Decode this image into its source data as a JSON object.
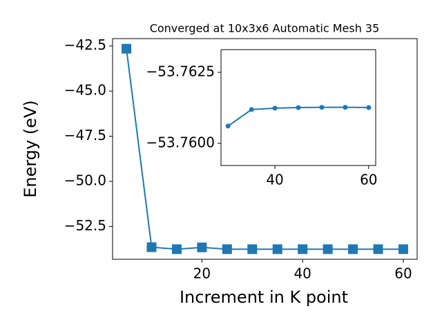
{
  "chart_data": [
    {
      "type": "line",
      "title": "Converged at 10x3x6 Automatic Mesh 35",
      "x_label": "Increment in K point",
      "y_label": "Energy (eV)",
      "x": [
        5,
        10,
        15,
        20,
        25,
        30,
        35,
        40,
        45,
        50,
        55,
        60
      ],
      "series": [
        {
          "color": "#1f77b4",
          "marker": "square",
          "values": [
            -42.65,
            -53.65,
            -53.76,
            -53.66,
            -53.76,
            -53.76,
            -53.76,
            -53.76,
            -53.76,
            -53.76,
            -53.76,
            -53.76
          ]
        }
      ],
      "xlim": [
        2.25,
        62.75
      ],
      "ylim": [
        -54.32,
        -42.09
      ],
      "xticks": [
        20,
        40,
        60
      ],
      "yticks": [
        {
          "value": -42.5,
          "label": "−42.5"
        },
        {
          "value": -45,
          "label": "−45.0"
        },
        {
          "value": -47.5,
          "label": "−47.5"
        },
        {
          "value": -50,
          "label": "−50.0"
        },
        {
          "value": -52.5,
          "label": "−52.5"
        }
      ]
    },
    {
      "type": "line",
      "x": [
        30,
        35,
        40,
        45,
        50,
        55,
        60
      ],
      "series": [
        {
          "color": "#1f77b4",
          "marker": "circle",
          "values": [
            -53.76061,
            -53.76119,
            -53.76124,
            -53.76126,
            -53.76127,
            -53.76127,
            -53.76126
          ]
        }
      ],
      "xlim": [
        28.5,
        61.5
      ],
      "ylim": [
        -53.75922,
        -53.7633
      ],
      "xticks": [
        40,
        60
      ],
      "yticks": [
        {
          "value": -53.7625,
          "label": "−53.7625"
        },
        {
          "value": -53.76,
          "label": "−53.7600"
        }
      ]
    }
  ]
}
